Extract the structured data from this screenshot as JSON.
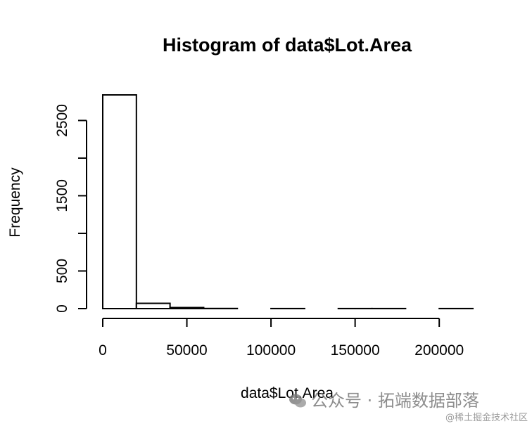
{
  "chart_data": {
    "type": "bar",
    "title": "Histogram of data$Lot.Area",
    "xlabel": "data$Lot.Area",
    "ylabel": "Frequency",
    "bin_width": 20000,
    "bins": [
      {
        "x0": 0,
        "x1": 20000,
        "count": 2840
      },
      {
        "x0": 20000,
        "x1": 40000,
        "count": 70
      },
      {
        "x0": 40000,
        "x1": 60000,
        "count": 14
      },
      {
        "x0": 60000,
        "x1": 80000,
        "count": 2
      },
      {
        "x0": 80000,
        "x1": 100000,
        "count": 0
      },
      {
        "x0": 100000,
        "x1": 120000,
        "count": 1
      },
      {
        "x0": 120000,
        "x1": 140000,
        "count": 0
      },
      {
        "x0": 140000,
        "x1": 160000,
        "count": 1
      },
      {
        "x0": 160000,
        "x1": 180000,
        "count": 1
      },
      {
        "x0": 180000,
        "x1": 200000,
        "count": 0
      },
      {
        "x0": 200000,
        "x1": 220000,
        "count": 1
      }
    ],
    "xlim": [
      0,
      220000
    ],
    "ylim": [
      0,
      2840
    ],
    "x_ticks": [
      0,
      50000,
      100000,
      150000,
      200000
    ],
    "x_tick_labels": [
      "0",
      "50000",
      "100000",
      "150000",
      "200000"
    ],
    "y_ticks": [
      0,
      500,
      1000,
      1500,
      2000,
      2500
    ],
    "y_tick_labels": [
      "0",
      "500",
      "",
      "1500",
      "",
      "2500"
    ],
    "bar_fill": "#ffffff",
    "bar_stroke": "#000000",
    "grid": false
  },
  "watermark": {
    "main": "公众号 · 拓端数据部落",
    "sub": "@稀土掘金技术社区",
    "icon": "wechat-icon"
  }
}
